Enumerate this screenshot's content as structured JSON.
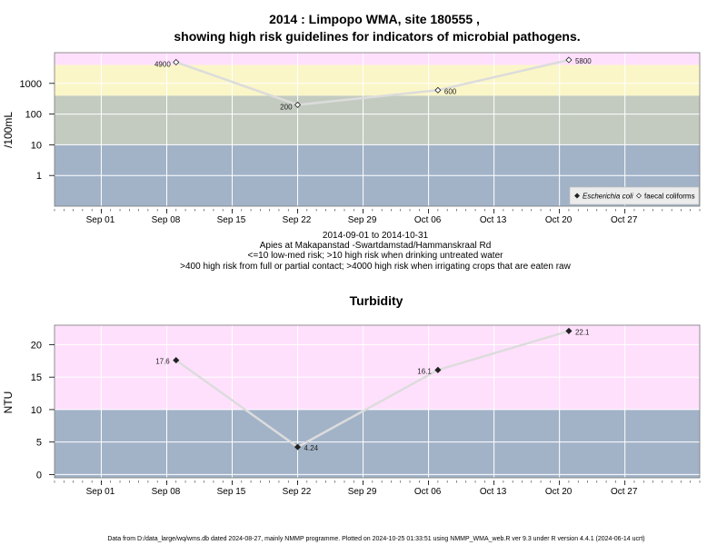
{
  "chart_data": [
    {
      "type": "line",
      "title_line1": "2014 : Limpopo WMA, site 180555 ,",
      "title_line2": "showing high risk guidelines for indicators of microbial pathogens.",
      "ylabel": "/100mL",
      "yscale": "log",
      "ylim": [
        0.1,
        10000
      ],
      "yticks": [
        {
          "value": 1,
          "label": "1"
        },
        {
          "value": 10,
          "label": "10"
        },
        {
          "value": 100,
          "label": "100"
        },
        {
          "value": 1000,
          "label": "1000"
        }
      ],
      "xlim": [
        "2014-08-27",
        "2014-11-04"
      ],
      "xticks": [
        {
          "date": "2014-09-01",
          "label": "Sep 01"
        },
        {
          "date": "2014-09-08",
          "label": "Sep 08"
        },
        {
          "date": "2014-09-15",
          "label": "Sep 15"
        },
        {
          "date": "2014-09-22",
          "label": "Sep 22"
        },
        {
          "date": "2014-09-29",
          "label": "Sep 29"
        },
        {
          "date": "2014-10-06",
          "label": "Oct 06"
        },
        {
          "date": "2014-10-13",
          "label": "Oct 13"
        },
        {
          "date": "2014-10-20",
          "label": "Oct 20"
        },
        {
          "date": "2014-10-27",
          "label": "Oct 27"
        }
      ],
      "bands": [
        {
          "from": 0.1,
          "to": 10,
          "color": "#a2b3c8"
        },
        {
          "from": 10,
          "to": 400,
          "color": "#c3cbc0"
        },
        {
          "from": 400,
          "to": 4000,
          "color": "#fbf6c7"
        },
        {
          "from": 4000,
          "to": 10000,
          "color": "#ffe0fc"
        }
      ],
      "series": [
        {
          "name": "faecal coliforms",
          "marker": "open-diamond",
          "points": [
            {
              "date": "2014-09-09",
              "y": 4900,
              "label": "4900"
            },
            {
              "date": "2014-09-22",
              "y": 200,
              "label": "200"
            },
            {
              "date": "2014-10-07",
              "y": 600,
              "label": "600"
            },
            {
              "date": "2014-10-21",
              "y": 5800,
              "label": "5800"
            }
          ]
        }
      ],
      "legend": {
        "position": "bottom-right",
        "items": [
          {
            "label": "Escherichia coli",
            "marker": "filled-diamond",
            "italic": true
          },
          {
            "label": "faecal coliforms",
            "marker": "open-diamond",
            "italic": false
          }
        ]
      },
      "subtitle_lines": [
        "2014-09-01 to 2014-10-31",
        "Apies at Makapanstad -Swartdamstad/Hammanskraal Rd",
        "<=10 low-med risk; >10 high risk when drinking untreated water",
        ">400 high risk from full or partial contact; >4000 high risk when irrigating crops that are eaten raw"
      ]
    },
    {
      "type": "line",
      "title": "Turbidity",
      "ylabel": "NTU",
      "yscale": "linear",
      "ylim": [
        -0.5,
        23
      ],
      "yticks": [
        {
          "value": 0,
          "label": "0"
        },
        {
          "value": 5,
          "label": "5"
        },
        {
          "value": 10,
          "label": "10"
        },
        {
          "value": 15,
          "label": "15"
        },
        {
          "value": 20,
          "label": "20"
        }
      ],
      "xlim": [
        "2014-08-27",
        "2014-11-04"
      ],
      "xticks": [
        {
          "date": "2014-09-01",
          "label": "Sep 01"
        },
        {
          "date": "2014-09-08",
          "label": "Sep 08"
        },
        {
          "date": "2014-09-15",
          "label": "Sep 15"
        },
        {
          "date": "2014-09-22",
          "label": "Sep 22"
        },
        {
          "date": "2014-09-29",
          "label": "Sep 29"
        },
        {
          "date": "2014-10-06",
          "label": "Oct 06"
        },
        {
          "date": "2014-10-13",
          "label": "Oct 13"
        },
        {
          "date": "2014-10-20",
          "label": "Oct 20"
        },
        {
          "date": "2014-10-27",
          "label": "Oct 27"
        }
      ],
      "bands": [
        {
          "from": -0.5,
          "to": 10,
          "color": "#a2b3c8"
        },
        {
          "from": 10,
          "to": 23,
          "color": "#ffe0fc"
        }
      ],
      "series": [
        {
          "marker": "filled-diamond",
          "points": [
            {
              "date": "2014-09-09",
              "y": 17.6,
              "label": "17.6"
            },
            {
              "date": "2014-09-22",
              "y": 4.24,
              "label": "4.24"
            },
            {
              "date": "2014-10-07",
              "y": 16.1,
              "label": "16.1"
            },
            {
              "date": "2014-10-21",
              "y": 22.1,
              "label": "22.1"
            }
          ]
        }
      ]
    }
  ],
  "footer": "Data from D:/data_large/wq/wms.db dated 2024-08-27, mainly NMMP programme. Plotted on 2024-10-25 01:33:51 using NMMP_WMA_web.R ver 9.3 under R version 4.4.1 (2024-06-14 ucrt)"
}
